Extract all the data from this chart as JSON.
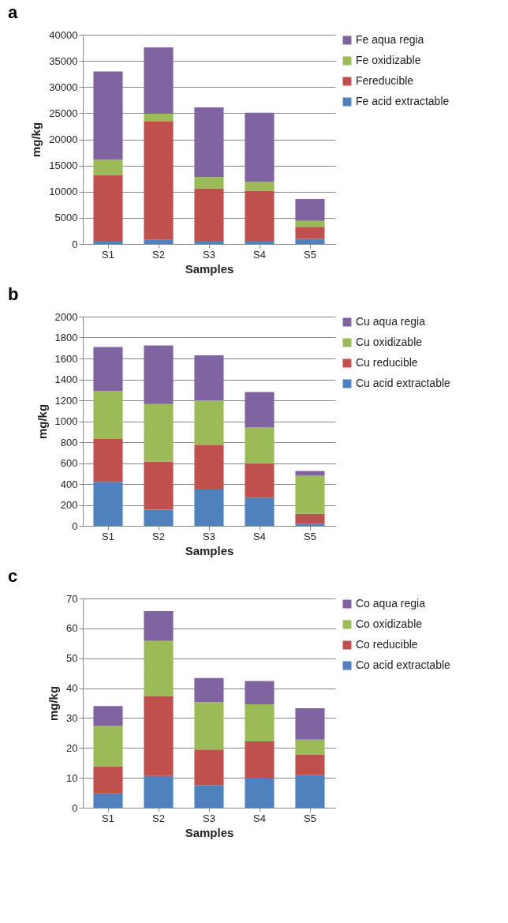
{
  "chart_data": [
    {
      "type": "bar",
      "title": "a",
      "stacked": true,
      "xlabel": "Samples",
      "ylabel": "mg/kg",
      "categories": [
        "S1",
        "S2",
        "S3",
        "S4",
        "S5"
      ],
      "ylim": [
        0,
        40000
      ],
      "yticks": [
        0,
        5000,
        10000,
        15000,
        20000,
        25000,
        30000,
        35000,
        40000
      ],
      "grid": "y",
      "legend": "right",
      "series": [
        {
          "name": "Fe acid extractable",
          "color": "#4f81bd",
          "values": [
            600,
            800,
            600,
            600,
            1000
          ]
        },
        {
          "name": "Fereducible",
          "color": "#c0504d",
          "values": [
            12600,
            22600,
            10000,
            9600,
            2300
          ]
        },
        {
          "name": "Fe oxidizable",
          "color": "#9bbb59",
          "values": [
            2900,
            1500,
            2200,
            1700,
            1100
          ]
        },
        {
          "name": "Fe aqua regia",
          "color": "#8064a2",
          "values": [
            16900,
            12700,
            13300,
            13200,
            4200
          ]
        }
      ]
    },
    {
      "type": "bar",
      "title": "b",
      "stacked": true,
      "xlabel": "Samples",
      "ylabel": "mg/kg",
      "categories": [
        "S1",
        "S2",
        "S3",
        "S4",
        "S5"
      ],
      "ylim": [
        0,
        2000
      ],
      "yticks": [
        0,
        200,
        400,
        600,
        800,
        1000,
        1200,
        1400,
        1600,
        1800,
        2000
      ],
      "grid": "y",
      "legend": "right",
      "series": [
        {
          "name": "Cu acid extractable",
          "color": "#4f81bd",
          "values": [
            420,
            155,
            355,
            270,
            20
          ]
        },
        {
          "name": "Cu reducible",
          "color": "#c0504d",
          "values": [
            410,
            460,
            420,
            330,
            95
          ]
        },
        {
          "name": "Cu oxidizable",
          "color": "#9bbb59",
          "values": [
            460,
            550,
            425,
            340,
            365
          ]
        },
        {
          "name": "Cu aqua regia",
          "color": "#8064a2",
          "values": [
            420,
            560,
            430,
            340,
            45
          ]
        }
      ]
    },
    {
      "type": "bar",
      "title": "c",
      "stacked": true,
      "xlabel": "Samples",
      "ylabel": "mg/kg",
      "categories": [
        "S1",
        "S2",
        "S3",
        "S4",
        "S5"
      ],
      "ylim": [
        0,
        70
      ],
      "yticks": [
        0,
        10,
        20,
        30,
        40,
        50,
        60,
        70
      ],
      "grid": "y",
      "legend": "right",
      "series": [
        {
          "name": "Co acid extractable",
          "color": "#4f81bd",
          "values": [
            4.8,
            10.6,
            7.5,
            9.8,
            10.9
          ]
        },
        {
          "name": "Co reducible",
          "color": "#c0504d",
          "values": [
            9.1,
            26.8,
            12,
            12.4,
            6.9
          ]
        },
        {
          "name": "Co oxidizable",
          "color": "#9bbb59",
          "values": [
            13.6,
            18.4,
            15.8,
            12.4,
            5
          ]
        },
        {
          "name": "Co aqua regia",
          "color": "#8064a2",
          "values": [
            6.5,
            10,
            8.1,
            7.8,
            10.5
          ]
        }
      ]
    }
  ]
}
